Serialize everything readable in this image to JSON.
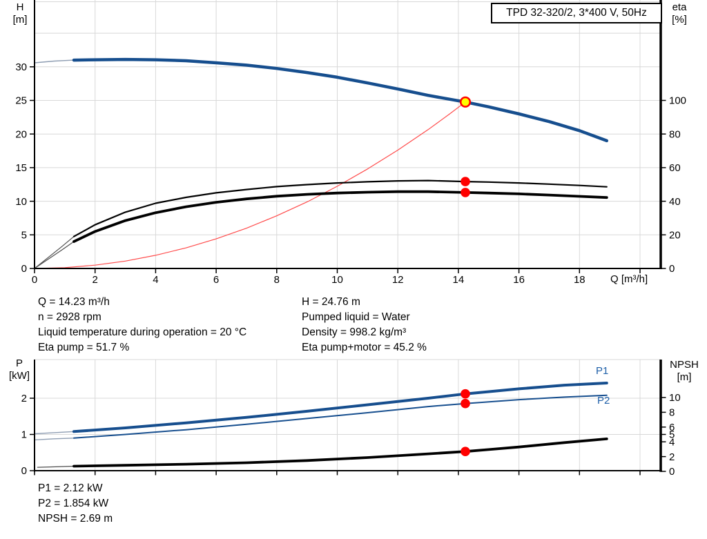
{
  "title_box": {
    "label": "TPD 32-320/2, 3*400 V, 50Hz"
  },
  "colors": {
    "curve_blue": "#164E8E",
    "blue_lead": "#8E9DB2",
    "label_blue": "#1E5FA8",
    "red": "#FF0000",
    "system_red": "#FF4A4A",
    "duty_yellow": "#FFFF00",
    "black": "#000000",
    "dark_lead": "#4D4D4D",
    "grid": "#D8D8D8"
  },
  "chart_data": [
    {
      "id": "qh-eta",
      "type": "line",
      "x_axis": {
        "label": "Q [m³/h]",
        "range": [
          0,
          20.7
        ],
        "ticks": [
          0,
          2,
          4,
          6,
          8,
          10,
          12,
          14,
          16,
          18
        ],
        "grid_step": 2
      },
      "y_axis_left": {
        "label_lines": [
          "H",
          "[m]"
        ],
        "range": [
          0,
          40
        ],
        "ticks": [
          0,
          5,
          10,
          15,
          20,
          25,
          30
        ]
      },
      "y_axis_right": {
        "label_lines": [
          "eta",
          "[%]"
        ],
        "range": [
          0,
          160
        ],
        "ticks": [
          0,
          20,
          40,
          60,
          80,
          100
        ]
      },
      "series": [
        {
          "name": "head-lead-in",
          "axis": "left",
          "color": "#8E9DB2",
          "width": 1.4,
          "points": [
            [
              0,
              30.6
            ],
            [
              0.65,
              30.85
            ],
            [
              1.3,
              31
            ]
          ]
        },
        {
          "name": "head",
          "axis": "left",
          "color": "#164E8E",
          "width": 4.5,
          "points": [
            [
              1.3,
              31
            ],
            [
              2,
              31.05
            ],
            [
              3,
              31.1
            ],
            [
              4,
              31.05
            ],
            [
              5,
              30.9
            ],
            [
              6,
              30.6
            ],
            [
              7,
              30.25
            ],
            [
              8,
              29.75
            ],
            [
              9,
              29.15
            ],
            [
              10,
              28.45
            ],
            [
              11,
              27.6
            ],
            [
              12,
              26.7
            ],
            [
              13,
              25.75
            ],
            [
              14.23,
              24.76
            ],
            [
              15,
              24.05
            ],
            [
              16,
              23
            ],
            [
              17,
              21.85
            ],
            [
              18,
              20.5
            ],
            [
              18.9,
              19
            ]
          ]
        },
        {
          "name": "system-curve",
          "axis": "left",
          "color": "#FF4A4A",
          "width": 1.2,
          "points": [
            [
              0,
              0
            ],
            [
              1,
              0.12
            ],
            [
              2,
              0.49
            ],
            [
              3,
              1.1
            ],
            [
              4,
              1.96
            ],
            [
              5,
              3.06
            ],
            [
              6,
              4.4
            ],
            [
              7,
              5.99
            ],
            [
              8,
              7.83
            ],
            [
              9,
              9.9
            ],
            [
              10,
              12.23
            ],
            [
              11,
              14.8
            ],
            [
              12,
              17.61
            ],
            [
              13,
              20.66
            ],
            [
              13.7,
              22.95
            ],
            [
              14.23,
              24.76
            ]
          ]
        },
        {
          "name": "eta-pump-lead-in",
          "axis": "right",
          "color": "#4D4D4D",
          "width": 1.2,
          "points": [
            [
              0,
              0
            ],
            [
              0.45,
              6.5
            ],
            [
              0.9,
              13
            ],
            [
              1.3,
              19
            ]
          ]
        },
        {
          "name": "eta-pump",
          "axis": "right",
          "color": "#000000",
          "width": 2.2,
          "points": [
            [
              1.3,
              19
            ],
            [
              2,
              26
            ],
            [
              3,
              33.5
            ],
            [
              4,
              38.8
            ],
            [
              5,
              42.3
            ],
            [
              6,
              45
            ],
            [
              7,
              47
            ],
            [
              8,
              48.7
            ],
            [
              9,
              49.9
            ],
            [
              10,
              50.9
            ],
            [
              11,
              51.6
            ],
            [
              12,
              52.1
            ],
            [
              13,
              52.3
            ],
            [
              14.23,
              51.7
            ],
            [
              15,
              51.4
            ],
            [
              16,
              50.9
            ],
            [
              17,
              50.2
            ],
            [
              18,
              49.4
            ],
            [
              18.9,
              48.6
            ]
          ]
        },
        {
          "name": "eta-pump-motor-lead-in",
          "axis": "right",
          "color": "#4D4D4D",
          "width": 1.2,
          "points": [
            [
              0,
              0
            ],
            [
              0.45,
              5.5
            ],
            [
              0.9,
              11
            ],
            [
              1.3,
              16
            ]
          ]
        },
        {
          "name": "eta-pump-motor",
          "axis": "right",
          "color": "#000000",
          "width": 3.8,
          "points": [
            [
              1.3,
              16
            ],
            [
              2,
              22
            ],
            [
              3,
              28.5
            ],
            [
              4,
              33.2
            ],
            [
              5,
              36.7
            ],
            [
              6,
              39.4
            ],
            [
              7,
              41.4
            ],
            [
              8,
              43
            ],
            [
              9,
              44.1
            ],
            [
              10,
              44.9
            ],
            [
              11,
              45.4
            ],
            [
              12,
              45.7
            ],
            [
              13,
              45.7
            ],
            [
              14.23,
              45.2
            ],
            [
              15,
              44.9
            ],
            [
              16,
              44.4
            ],
            [
              17,
              43.7
            ],
            [
              18,
              42.9
            ],
            [
              18.9,
              42.2
            ]
          ]
        }
      ],
      "markers": [
        {
          "name": "duty-point",
          "axis": "left",
          "q": 14.23,
          "v": 24.76,
          "r": 6.8,
          "fill": "#FFFF00",
          "stroke": "#FF0000",
          "stroke_width": 2.6
        },
        {
          "name": "eta-pump-point",
          "axis": "right",
          "q": 14.23,
          "v": 51.7,
          "r": 6.8,
          "fill": "#FF0000"
        },
        {
          "name": "eta-pump-motor-point",
          "axis": "right",
          "q": 14.23,
          "v": 45.2,
          "r": 6.8,
          "fill": "#FF0000"
        }
      ]
    },
    {
      "id": "p-npsh",
      "type": "line",
      "x_axis": {
        "ticks": [
          0,
          2,
          4,
          6,
          8,
          10,
          12,
          14,
          16,
          18,
          20
        ],
        "grid_step": 2
      },
      "y_axis_left": {
        "label_lines": [
          "P",
          "[kW]"
        ],
        "range": [
          0,
          3.07
        ],
        "ticks": [
          0,
          1,
          2
        ]
      },
      "y_axis_right": {
        "label_lines": [
          "NPSH",
          "[m]"
        ],
        "range": [
          0,
          15.1
        ],
        "ticks": [
          0,
          2,
          4,
          5,
          6,
          8,
          10
        ]
      },
      "series_labels": {
        "p1": "P1",
        "p2": "P2"
      },
      "series": [
        {
          "name": "npsh-lead-in",
          "axis": "right",
          "color": "#4D4D4D",
          "width": 1.2,
          "points": [
            [
              0.1,
              0.55
            ],
            [
              0.7,
              0.62
            ],
            [
              1.3,
              0.7
            ]
          ]
        },
        {
          "name": "npsh",
          "axis": "right",
          "color": "#000000",
          "width": 3.8,
          "points": [
            [
              1.3,
              0.7
            ],
            [
              3,
              0.82
            ],
            [
              5,
              0.97
            ],
            [
              7,
              1.17
            ],
            [
              9,
              1.47
            ],
            [
              11,
              1.87
            ],
            [
              13,
              2.37
            ],
            [
              14.23,
              2.69
            ],
            [
              15,
              2.95
            ],
            [
              16,
              3.3
            ],
            [
              17.5,
              3.9
            ],
            [
              18.9,
              4.4
            ]
          ]
        },
        {
          "name": "p2-lead-in",
          "axis": "left",
          "color": "#8E9DB2",
          "width": 1.4,
          "points": [
            [
              0,
              0.85
            ],
            [
              0.65,
              0.88
            ],
            [
              1.3,
              0.9
            ]
          ]
        },
        {
          "name": "p2",
          "axis": "left",
          "color": "#164E8E",
          "width": 2,
          "points": [
            [
              1.3,
              0.9
            ],
            [
              3,
              1
            ],
            [
              5,
              1.13
            ],
            [
              7,
              1.28
            ],
            [
              9,
              1.44
            ],
            [
              11,
              1.6
            ],
            [
              13,
              1.77
            ],
            [
              14.23,
              1.854
            ],
            [
              16,
              1.96
            ],
            [
              17.5,
              2.03
            ],
            [
              18.9,
              2.08
            ]
          ]
        },
        {
          "name": "p1-lead-in",
          "axis": "left",
          "color": "#8E9DB2",
          "width": 1.4,
          "points": [
            [
              0,
              1.02
            ],
            [
              0.65,
              1.05
            ],
            [
              1.3,
              1.08
            ]
          ]
        },
        {
          "name": "p1",
          "axis": "left",
          "color": "#164E8E",
          "width": 4,
          "points": [
            [
              1.3,
              1.08
            ],
            [
              3,
              1.18
            ],
            [
              5,
              1.32
            ],
            [
              7,
              1.47
            ],
            [
              9,
              1.64
            ],
            [
              11,
              1.82
            ],
            [
              13,
              2
            ],
            [
              14.23,
              2.12
            ],
            [
              16,
              2.26
            ],
            [
              17.5,
              2.36
            ],
            [
              18.9,
              2.42
            ]
          ]
        }
      ],
      "markers": [
        {
          "name": "p1-point",
          "axis": "left",
          "q": 14.23,
          "v": 2.12,
          "r": 6.8,
          "fill": "#FF0000"
        },
        {
          "name": "p2-point",
          "axis": "left",
          "q": 14.23,
          "v": 1.854,
          "r": 6.8,
          "fill": "#FF0000"
        },
        {
          "name": "npsh-point",
          "axis": "right",
          "q": 14.23,
          "v": 2.69,
          "r": 6.8,
          "fill": "#FF0000"
        }
      ]
    }
  ],
  "info": {
    "left": [
      "Q = 14.23 m³/h",
      "n = 2928 rpm",
      "Liquid temperature during operation = 20 °C",
      "Eta pump = 51.7 %"
    ],
    "right": [
      "H = 24.76 m",
      "Pumped liquid = Water",
      "Density = 998.2 kg/m³",
      "Eta pump+motor = 45.2 %"
    ]
  },
  "results": [
    "P1 = 2.12 kW",
    "P2 = 1.854 kW",
    "NPSH = 2.69 m"
  ]
}
